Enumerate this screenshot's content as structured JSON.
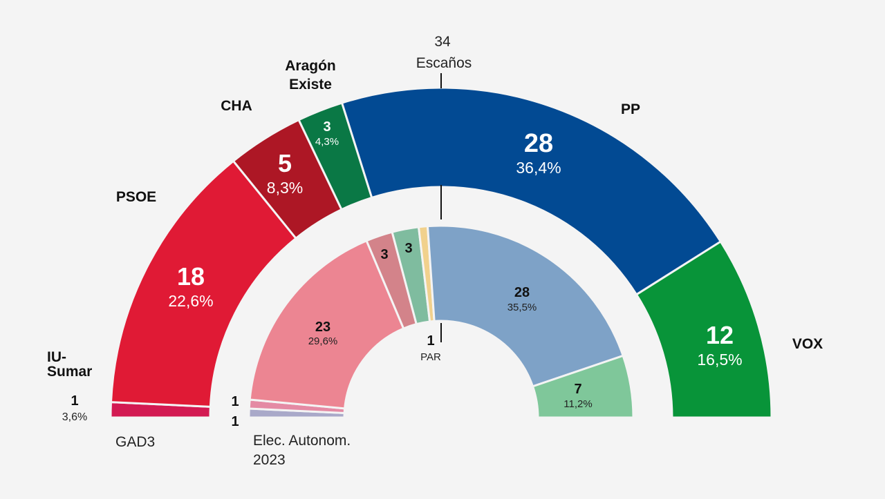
{
  "chart_data": {
    "type": "pie",
    "subtype": "double-hemicycle",
    "title": "",
    "total_label": {
      "value": "34",
      "text": "Escaños"
    },
    "series": [
      {
        "name": "GAD3",
        "segments": [
          {
            "party": "IU-Sumar",
            "seats": 1,
            "pct": "3,6%",
            "color": "#d31a52"
          },
          {
            "party": "PSOE",
            "seats": 18,
            "pct": "22,6%",
            "color": "#e01a35"
          },
          {
            "party": "CHA",
            "seats": 5,
            "pct": "8,3%",
            "color": "#ad1725"
          },
          {
            "party": "Aragón Existe",
            "seats": 3,
            "pct": "4,3%",
            "color": "#0a7845"
          },
          {
            "party": "PP",
            "seats": 28,
            "pct": "36,4%",
            "color": "#024a93"
          },
          {
            "party": "VOX",
            "seats": 12,
            "pct": "16,5%",
            "color": "#089439"
          }
        ]
      },
      {
        "name": "Elec. Autonom. 2023",
        "segments": [
          {
            "party": "",
            "seats": 1,
            "pct": "",
            "color": "#a9a9c9"
          },
          {
            "party": "",
            "seats": 1,
            "pct": "",
            "color": "#e48aa4"
          },
          {
            "party": "",
            "seats": 23,
            "pct": "29,6%",
            "color": "#ec8592"
          },
          {
            "party": "",
            "seats": 3,
            "pct": "",
            "color": "#d3838a"
          },
          {
            "party": "",
            "seats": 3,
            "pct": "",
            "color": "#7fbc9f"
          },
          {
            "party": "PAR",
            "seats": 1,
            "pct": "",
            "color": "#f1d18d"
          },
          {
            "party": "",
            "seats": 28,
            "pct": "35,5%",
            "color": "#7ea2c7"
          },
          {
            "party": "",
            "seats": 7,
            "pct": "11,2%",
            "color": "#7fc79a"
          }
        ]
      }
    ]
  }
}
